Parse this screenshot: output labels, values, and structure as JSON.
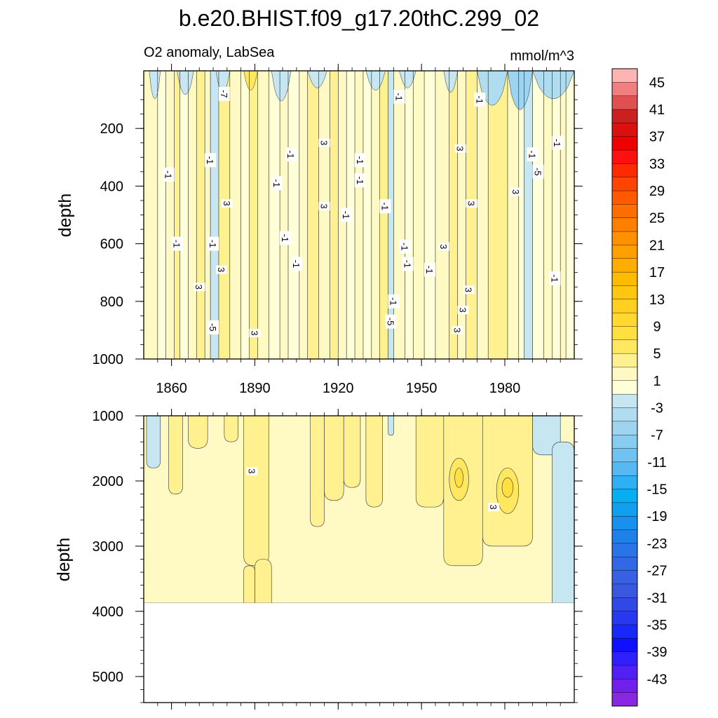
{
  "chart_data": {
    "type": "heatmap",
    "title": "b.e20.BHIST.f09_g17.20thC.299_02",
    "subtitle": "O2 anomaly, LabSea",
    "units": "mmol/m^3",
    "xlabel": "",
    "ylabel": "depth",
    "x_ticks": [
      "1860",
      "1890",
      "1920",
      "1950",
      "1980"
    ],
    "x_range": [
      1850,
      2005
    ],
    "upper_panel": {
      "ylim": [
        0,
        1000
      ],
      "y_ticks": [
        "200",
        "400",
        "600",
        "800",
        "1000"
      ],
      "bands": [
        {
          "x0": 1850,
          "x1": 1855,
          "v": 1
        },
        {
          "x0": 1855,
          "x1": 1858,
          "v": -1
        },
        {
          "x0": 1858,
          "x1": 1861,
          "v": 1
        },
        {
          "x0": 1861,
          "x1": 1863,
          "v": 3
        },
        {
          "x0": 1863,
          "x1": 1866,
          "v": -1
        },
        {
          "x0": 1866,
          "x1": 1869,
          "v": 1
        },
        {
          "x0": 1869,
          "x1": 1872,
          "v": 3
        },
        {
          "x0": 1872,
          "x1": 1874,
          "v": 1
        },
        {
          "x0": 1874,
          "x1": 1877,
          "v": -3
        },
        {
          "x0": 1877,
          "x1": 1881,
          "v": 3
        },
        {
          "x0": 1881,
          "x1": 1885,
          "v": 1
        },
        {
          "x0": 1885,
          "x1": 1888,
          "v": -1
        },
        {
          "x0": 1888,
          "x1": 1891,
          "v": 3
        },
        {
          "x0": 1891,
          "x1": 1895,
          "v": 1
        },
        {
          "x0": 1895,
          "x1": 1899,
          "v": -1
        },
        {
          "x0": 1899,
          "x1": 1902,
          "v": 1
        },
        {
          "x0": 1902,
          "x1": 1906,
          "v": -1
        },
        {
          "x0": 1906,
          "x1": 1909,
          "v": 1
        },
        {
          "x0": 1909,
          "x1": 1913,
          "v": 3
        },
        {
          "x0": 1913,
          "x1": 1917,
          "v": 1
        },
        {
          "x0": 1917,
          "x1": 1920,
          "v": 3
        },
        {
          "x0": 1920,
          "x1": 1923,
          "v": 1
        },
        {
          "x0": 1923,
          "x1": 1926,
          "v": -1
        },
        {
          "x0": 1926,
          "x1": 1929,
          "v": 1
        },
        {
          "x0": 1929,
          "x1": 1932,
          "v": -1
        },
        {
          "x0": 1932,
          "x1": 1935,
          "v": 1
        },
        {
          "x0": 1935,
          "x1": 1938,
          "v": 3
        },
        {
          "x0": 1938,
          "x1": 1940,
          "v": -3
        },
        {
          "x0": 1940,
          "x1": 1944,
          "v": 1
        },
        {
          "x0": 1944,
          "x1": 1947,
          "v": -1
        },
        {
          "x0": 1947,
          "x1": 1951,
          "v": 1
        },
        {
          "x0": 1951,
          "x1": 1955,
          "v": -1
        },
        {
          "x0": 1955,
          "x1": 1960,
          "v": 1
        },
        {
          "x0": 1960,
          "x1": 1963,
          "v": 3
        },
        {
          "x0": 1963,
          "x1": 1966,
          "v": 1
        },
        {
          "x0": 1966,
          "x1": 1970,
          "v": 3
        },
        {
          "x0": 1970,
          "x1": 1974,
          "v": 1
        },
        {
          "x0": 1974,
          "x1": 1981,
          "v": 3
        },
        {
          "x0": 1981,
          "x1": 1985,
          "v": 1
        },
        {
          "x0": 1985,
          "x1": 1987,
          "v": -1
        },
        {
          "x0": 1987,
          "x1": 1990,
          "v": -3
        },
        {
          "x0": 1990,
          "x1": 1994,
          "v": -1
        },
        {
          "x0": 1994,
          "x1": 1997,
          "v": 1
        },
        {
          "x0": 1997,
          "x1": 2000,
          "v": -1
        },
        {
          "x0": 2000,
          "x1": 2002,
          "v": 1
        },
        {
          "x0": 2002,
          "x1": 2005,
          "v": -1
        }
      ],
      "surface_patches": [
        {
          "x0": 1852,
          "x1": 1856,
          "d0": 0,
          "d1": 110,
          "v": -3
        },
        {
          "x0": 1862,
          "x1": 1868,
          "d0": 0,
          "d1": 90,
          "v": -3
        },
        {
          "x0": 1876,
          "x1": 1881,
          "d0": 0,
          "d1": 80,
          "v": -3
        },
        {
          "x0": 1886,
          "x1": 1891,
          "d0": 0,
          "d1": 70,
          "v": 5
        },
        {
          "x0": 1896,
          "x1": 1903,
          "d0": 0,
          "d1": 120,
          "v": -3
        },
        {
          "x0": 1909,
          "x1": 1916,
          "d0": 0,
          "d1": 60,
          "v": -3
        },
        {
          "x0": 1930,
          "x1": 1937,
          "d0": 0,
          "d1": 70,
          "v": -3
        },
        {
          "x0": 1942,
          "x1": 1948,
          "d0": 0,
          "d1": 60,
          "v": -3
        },
        {
          "x0": 1958,
          "x1": 1963,
          "d0": 0,
          "d1": 80,
          "v": -3
        },
        {
          "x0": 1970,
          "x1": 1981,
          "d0": 0,
          "d1": 140,
          "v": -5
        },
        {
          "x0": 1981,
          "x1": 1990,
          "d0": 0,
          "d1": 160,
          "v": -7
        },
        {
          "x0": 1990,
          "x1": 2005,
          "d0": 0,
          "d1": 110,
          "v": -5
        }
      ],
      "contour_labels": [
        {
          "x": 1879,
          "d": 80,
          "t": "-7"
        },
        {
          "x": 1859,
          "d": 360,
          "t": "-1"
        },
        {
          "x": 1874,
          "d": 310,
          "t": "-1"
        },
        {
          "x": 1880,
          "d": 460,
          "t": "3"
        },
        {
          "x": 1862,
          "d": 600,
          "t": "-1"
        },
        {
          "x": 1875,
          "d": 600,
          "t": "-1"
        },
        {
          "x": 1878,
          "d": 690,
          "t": "3"
        },
        {
          "x": 1870,
          "d": 750,
          "t": "3"
        },
        {
          "x": 1875,
          "d": 890,
          "t": "-5"
        },
        {
          "x": 1890,
          "d": 910,
          "t": "3"
        },
        {
          "x": 1898,
          "d": 390,
          "t": "-1"
        },
        {
          "x": 1903,
          "d": 290,
          "t": "-1"
        },
        {
          "x": 1901,
          "d": 580,
          "t": "-1"
        },
        {
          "x": 1905,
          "d": 670,
          "t": "-1"
        },
        {
          "x": 1915,
          "d": 250,
          "t": "3"
        },
        {
          "x": 1915,
          "d": 470,
          "t": "3"
        },
        {
          "x": 1923,
          "d": 500,
          "t": "-1"
        },
        {
          "x": 1928,
          "d": 310,
          "t": "-1"
        },
        {
          "x": 1928,
          "d": 380,
          "t": "-1"
        },
        {
          "x": 1937,
          "d": 470,
          "t": "-1"
        },
        {
          "x": 1942,
          "d": 90,
          "t": "-1"
        },
        {
          "x": 1944,
          "d": 610,
          "t": "-1"
        },
        {
          "x": 1945,
          "d": 670,
          "t": "-1"
        },
        {
          "x": 1940,
          "d": 800,
          "t": "-1"
        },
        {
          "x": 1939,
          "d": 870,
          "t": "-5"
        },
        {
          "x": 1953,
          "d": 690,
          "t": "-1"
        },
        {
          "x": 1958,
          "d": 610,
          "t": "3"
        },
        {
          "x": 1964,
          "d": 270,
          "t": "3"
        },
        {
          "x": 1968,
          "d": 460,
          "t": "3"
        },
        {
          "x": 1967,
          "d": 760,
          "t": "3"
        },
        {
          "x": 1965,
          "d": 830,
          "t": "3"
        },
        {
          "x": 1963,
          "d": 900,
          "t": "3"
        },
        {
          "x": 1971,
          "d": 100,
          "t": "-1"
        },
        {
          "x": 1984,
          "d": 420,
          "t": "3"
        },
        {
          "x": 1990,
          "d": 290,
          "t": "-1"
        },
        {
          "x": 1992,
          "d": 350,
          "t": "-5"
        },
        {
          "x": 1999,
          "d": 250,
          "t": "-1"
        },
        {
          "x": 1998,
          "d": 720,
          "t": "-1"
        }
      ]
    },
    "lower_panel": {
      "ylim": [
        1000,
        5400
      ],
      "y_ticks": [
        "1000",
        "2000",
        "3000",
        "4000",
        "5000"
      ],
      "data_bottom": 3870,
      "regions": [
        {
          "x0": 1850,
          "x1": 2005,
          "d0": 1000,
          "d1": 3870,
          "v": 1
        },
        {
          "x0": 1851,
          "x1": 1856,
          "d0": 1000,
          "d1": 1800,
          "v": -3
        },
        {
          "x0": 1859,
          "x1": 1864,
          "d0": 1000,
          "d1": 2200,
          "v": 3
        },
        {
          "x0": 1866,
          "x1": 1873,
          "d0": 1000,
          "d1": 1500,
          "v": 3
        },
        {
          "x0": 1879,
          "x1": 1884,
          "d0": 1000,
          "d1": 1400,
          "v": 3
        },
        {
          "x0": 1886,
          "x1": 1895,
          "d0": 1000,
          "d1": 3300,
          "v": 3
        },
        {
          "x0": 1886,
          "x1": 1890,
          "d0": 3300,
          "d1": 3870,
          "v": 3
        },
        {
          "x0": 1890,
          "x1": 1896,
          "d0": 3200,
          "d1": 3870,
          "v": 3
        },
        {
          "x0": 1910,
          "x1": 1915,
          "d0": 1000,
          "d1": 2700,
          "v": 3
        },
        {
          "x0": 1915,
          "x1": 1922,
          "d0": 1000,
          "d1": 2300,
          "v": 3
        },
        {
          "x0": 1922,
          "x1": 1928,
          "d0": 1000,
          "d1": 2100,
          "v": 3
        },
        {
          "x0": 1930,
          "x1": 1936,
          "d0": 1000,
          "d1": 2400,
          "v": 3
        },
        {
          "x0": 1938,
          "x1": 1940,
          "d0": 1000,
          "d1": 1300,
          "v": -3
        },
        {
          "x0": 1948,
          "x1": 1958,
          "d0": 1000,
          "d1": 2400,
          "v": 3
        },
        {
          "x0": 1958,
          "x1": 1972,
          "d0": 1000,
          "d1": 3300,
          "v": 3
        },
        {
          "x0": 1972,
          "x1": 1990,
          "d0": 1000,
          "d1": 3000,
          "v": 3
        },
        {
          "x0": 1960,
          "x1": 1967,
          "d0": 1650,
          "d1": 2300,
          "v": 5
        },
        {
          "x0": 1977,
          "x1": 1985,
          "d0": 1800,
          "d1": 2500,
          "v": 5
        },
        {
          "x0": 1962,
          "x1": 1965,
          "d0": 1800,
          "d1": 2100,
          "v": 7
        },
        {
          "x0": 1979,
          "x1": 1983,
          "d0": 1950,
          "d1": 2250,
          "v": 7
        },
        {
          "x0": 1990,
          "x1": 2000,
          "d0": 1000,
          "d1": 1600,
          "v": -3
        },
        {
          "x0": 1997,
          "x1": 2005,
          "d0": 1400,
          "d1": 3870,
          "v": -3
        }
      ],
      "contour_labels": [
        {
          "x": 1889,
          "d": 1850,
          "t": "3"
        },
        {
          "x": 1976,
          "d": 2400,
          "t": "3"
        }
      ]
    },
    "colorbar": {
      "levels": [
        45,
        43,
        41,
        39,
        37,
        35,
        33,
        31,
        29,
        27,
        25,
        23,
        21,
        19,
        17,
        15,
        13,
        11,
        9,
        7,
        5,
        3,
        1,
        -1,
        -3,
        -5,
        -7,
        -9,
        -11,
        -13,
        -15,
        -17,
        -19,
        -21,
        -23,
        -25,
        -27,
        -29,
        -31,
        -33,
        -35,
        -37,
        -39,
        -41,
        -43
      ],
      "tick_labels": [
        "45",
        "41",
        "37",
        "33",
        "29",
        "25",
        "21",
        "17",
        "13",
        "9",
        "5",
        "1",
        "-3",
        "-7",
        "-11",
        "-15",
        "-19",
        "-23",
        "-27",
        "-31",
        "-35",
        "-39",
        "-43"
      ],
      "colors": [
        "#ffb4b4",
        "#f08080",
        "#e05050",
        "#cc2020",
        "#dd1010",
        "#ee0000",
        "#ff1010",
        "#ff2a00",
        "#ff4400",
        "#ff5a00",
        "#ff6e00",
        "#ff8000",
        "#ff9000",
        "#ffa000",
        "#ffae00",
        "#ffbb00",
        "#ffc710",
        "#ffd020",
        "#ffd830",
        "#ffe040",
        "#ffe860",
        "#fff090",
        "#fffac4",
        "#ffffd8",
        "#c6e6f2",
        "#b0dcf0",
        "#9ed4f0",
        "#88ccf0",
        "#70c2f0",
        "#58b8f2",
        "#2eb0f4",
        "#06b0f0",
        "#10a0f0",
        "#1890ee",
        "#2080ea",
        "#2874e8",
        "#3068e6",
        "#3860e4",
        "#3858e0",
        "#3048e8",
        "#2838f0",
        "#1828f8",
        "#1010ff",
        "#3020ff",
        "#5020f4",
        "#7020ea",
        "#8828e0"
      ]
    }
  }
}
